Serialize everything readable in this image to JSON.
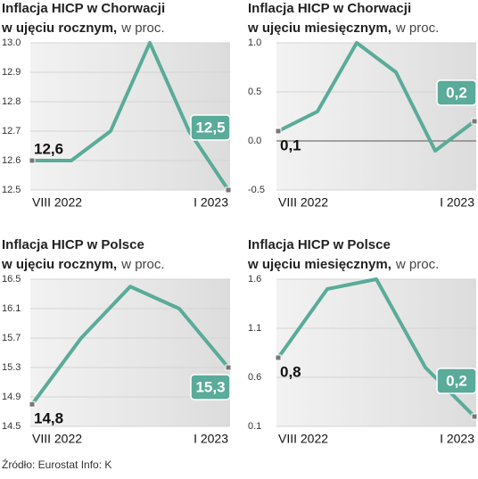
{
  "chart_data": [
    {
      "type": "line",
      "title": "Inflacja HICP w Chorwacji",
      "subtitle": "w ujęciu rocznym,",
      "unit": "w proc.",
      "categories": [
        "VIII 2022",
        null,
        null,
        null,
        null,
        "I 2023"
      ],
      "values": [
        12.6,
        12.6,
        12.7,
        13.0,
        12.7,
        12.5
      ],
      "value_labels": [
        "12,6",
        null,
        null,
        null,
        null,
        "12,5"
      ],
      "color": "#5aab99",
      "ylim": [
        12.5,
        13.0
      ],
      "yticks": [
        12.5,
        12.6,
        12.7,
        12.8,
        12.9,
        {
          "value": 13.0,
          "label": "13.0"
        }
      ],
      "grid": true
    },
    {
      "type": "line",
      "title": "Inflacja HICP w Chorwacji",
      "subtitle": "w ujęciu miesięcznym,",
      "unit": "w proc.",
      "categories": [
        "VIII 2022",
        null,
        null,
        null,
        null,
        "I 2023"
      ],
      "values": [
        0.1,
        0.3,
        1.0,
        0.7,
        -0.1,
        0.2
      ],
      "value_labels": [
        "0,1",
        null,
        null,
        null,
        null,
        "0,2"
      ],
      "color": "#5aab99",
      "ylim": [
        -0.5,
        1.0
      ],
      "yticks": [
        -0.5,
        {
          "value": 0,
          "label": "0.0"
        },
        0.5,
        {
          "value": 1,
          "label": "1.0"
        }
      ],
      "grid": true
    },
    {
      "type": "line",
      "title": "Inflacja HICP w Polsce",
      "subtitle": "w ujęciu rocznym,",
      "unit": "w proc.",
      "categories": [
        "VIII 2022",
        null,
        null,
        null,
        "I 2023"
      ],
      "values": [
        14.8,
        15.7,
        16.4,
        16.1,
        15.3
      ],
      "value_labels": [
        "14,8",
        null,
        null,
        null,
        "15,3"
      ],
      "color": "#5aab99",
      "ylim": [
        14.5,
        16.5
      ],
      "yticks": [
        14.5,
        14.9,
        15.3,
        15.7,
        16.1,
        16.5
      ],
      "grid": true
    },
    {
      "type": "line",
      "title": "Inflacja HICP w Polsce",
      "subtitle": "w ujęciu miesięcznym,",
      "unit": "w proc.",
      "categories": [
        "VIII 2022",
        null,
        null,
        null,
        "I 2023"
      ],
      "values": [
        0.8,
        1.5,
        1.6,
        0.7,
        0.2
      ],
      "value_labels": [
        "0,8",
        null,
        null,
        null,
        "0,2"
      ],
      "color": "#5aab99",
      "ylim": [
        0.1,
        1.6
      ],
      "yticks": [
        0.1,
        0.6,
        1.1,
        1.6
      ],
      "grid": true
    }
  ],
  "source": "Źródło: Eurostat Info: K"
}
